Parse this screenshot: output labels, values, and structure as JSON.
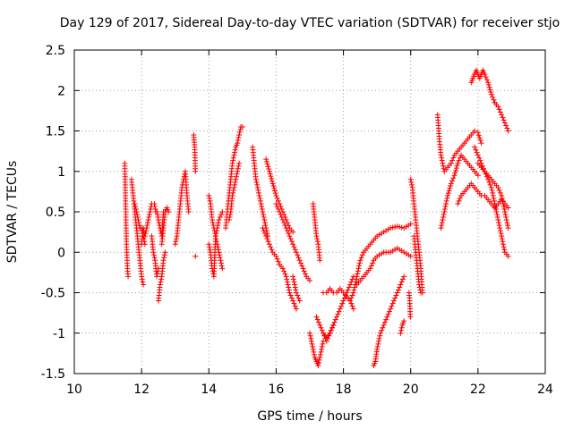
{
  "chart_data": {
    "type": "scatter",
    "title": "Day 129 of 2017, Sidereal Day-to-day VTEC variation (SDTVAR) for receiver stjo",
    "xlabel": "GPS time / hours",
    "ylabel": "SDTVAR / TECUs",
    "xlim": [
      10,
      24
    ],
    "ylim": [
      -1.5,
      2.5
    ],
    "xticks": [
      10,
      12,
      14,
      16,
      18,
      20,
      22,
      24
    ],
    "xtick_labels": [
      "10",
      "12",
      "14",
      "16",
      "18",
      "20",
      "22",
      "24"
    ],
    "yticks": [
      -1.5,
      -1,
      -0.5,
      0,
      0.5,
      1,
      1.5,
      2,
      2.5
    ],
    "ytick_labels": [
      "-1.5",
      "-1",
      "-0.5",
      "0",
      "0.5",
      "1",
      "1.5",
      "2",
      "2.5"
    ],
    "grid": true,
    "marker": "plus",
    "color": "#ff0000",
    "series": [
      {
        "name": "t11.5",
        "x": [
          11.5,
          11.52,
          11.54,
          11.56,
          11.58,
          11.6
        ],
        "y": [
          1.1,
          0.7,
          0.3,
          0.0,
          -0.2,
          -0.3
        ]
      },
      {
        "name": "t11.7",
        "x": [
          11.7,
          11.75,
          11.8,
          11.85,
          11.9,
          11.95,
          12.0,
          12.05
        ],
        "y": [
          0.9,
          0.7,
          0.5,
          0.3,
          0.1,
          -0.1,
          -0.3,
          -0.4
        ]
      },
      {
        "name": "t11.8",
        "x": [
          11.8,
          11.85,
          11.9,
          11.95,
          12.0,
          12.05,
          12.1
        ],
        "y": [
          0.6,
          0.5,
          0.4,
          0.3,
          0.3,
          0.2,
          0.1
        ]
      },
      {
        "name": "t12.0",
        "x": [
          12.0,
          12.05,
          12.1,
          12.15,
          12.2,
          12.25,
          12.3
        ],
        "y": [
          0.1,
          0.3,
          0.2,
          0.3,
          0.4,
          0.5,
          0.6
        ]
      },
      {
        "name": "t12.3",
        "x": [
          12.3,
          12.35,
          12.4,
          12.45,
          12.5
        ],
        "y": [
          0.2,
          0.0,
          -0.1,
          -0.3,
          -0.2
        ]
      },
      {
        "name": "t12.4",
        "x": [
          12.38,
          12.42,
          12.46,
          12.5,
          12.55,
          12.6,
          12.65
        ],
        "y": [
          0.6,
          0.5,
          0.5,
          0.4,
          0.3,
          0.2,
          0.5
        ]
      },
      {
        "name": "t12.5",
        "x": [
          12.5,
          12.55,
          12.6,
          12.65,
          12.7
        ],
        "y": [
          -0.6,
          -0.4,
          -0.3,
          -0.1,
          0.0
        ]
      },
      {
        "name": "t12.6",
        "x": [
          12.6,
          12.65,
          12.7,
          12.75,
          12.8
        ],
        "y": [
          0.1,
          0.3,
          0.5,
          0.55,
          0.5
        ]
      },
      {
        "name": "t13.0",
        "x": [
          13.0,
          13.05,
          13.1,
          13.15,
          13.2,
          13.25,
          13.3,
          13.35,
          13.4
        ],
        "y": [
          0.1,
          0.2,
          0.4,
          0.6,
          0.8,
          0.9,
          1.0,
          0.7,
          0.5
        ]
      },
      {
        "name": "t13.6",
        "x": [
          13.55,
          13.58,
          13.6
        ],
        "y": [
          1.45,
          1.3,
          1.0
        ]
      },
      {
        "name": "t13.6b",
        "x": [
          13.6
        ],
        "y": [
          -0.05
        ]
      },
      {
        "name": "t14.0",
        "x": [
          14.0,
          14.05,
          14.1,
          14.15,
          14.2,
          14.25,
          14.3,
          14.35,
          14.4
        ],
        "y": [
          0.7,
          0.6,
          0.4,
          0.3,
          0.2,
          0.1,
          0.0,
          -0.1,
          -0.2
        ]
      },
      {
        "name": "t14.0b",
        "x": [
          14.0,
          14.05,
          14.1,
          14.15,
          14.2,
          14.3,
          14.4
        ],
        "y": [
          0.1,
          0.0,
          -0.2,
          -0.3,
          0.2,
          0.4,
          0.5
        ]
      },
      {
        "name": "t14.5",
        "x": [
          14.5,
          14.55,
          14.6,
          14.65,
          14.7,
          14.75,
          14.8,
          14.85,
          14.9,
          14.95,
          15.0
        ],
        "y": [
          0.3,
          0.5,
          0.7,
          0.9,
          1.1,
          1.2,
          1.3,
          1.35,
          1.45,
          1.55,
          1.55
        ]
      },
      {
        "name": "t14.6",
        "x": [
          14.6,
          14.65,
          14.7,
          14.75,
          14.8,
          14.85,
          14.9
        ],
        "y": [
          0.4,
          0.5,
          0.7,
          0.8,
          0.9,
          1.0,
          1.1
        ]
      },
      {
        "name": "t15.3",
        "x": [
          15.3,
          15.35,
          15.4,
          15.45,
          15.5,
          15.55,
          15.6,
          15.65,
          15.7,
          15.75
        ],
        "y": [
          1.3,
          1.1,
          0.9,
          0.8,
          0.7,
          0.6,
          0.5,
          0.4,
          0.3,
          0.2
        ]
      },
      {
        "name": "t15.7",
        "x": [
          15.7,
          15.8,
          15.9,
          16.0,
          16.1,
          16.2,
          16.3,
          16.4,
          16.5
        ],
        "y": [
          1.15,
          1.0,
          0.85,
          0.7,
          0.6,
          0.5,
          0.4,
          0.3,
          0.25
        ]
      },
      {
        "name": "t16.0",
        "x": [
          16.0,
          16.1,
          16.2,
          16.3,
          16.4,
          16.5,
          16.6,
          16.7,
          16.8,
          16.9,
          17.0
        ],
        "y": [
          0.6,
          0.5,
          0.4,
          0.3,
          0.2,
          0.1,
          0.0,
          -0.1,
          -0.2,
          -0.3,
          -0.35
        ]
      },
      {
        "name": "t15.6",
        "x": [
          15.6,
          15.7,
          15.8,
          15.9,
          16.0,
          16.1,
          16.2,
          16.3,
          16.4,
          16.5,
          16.6
        ],
        "y": [
          0.3,
          0.2,
          0.1,
          0.0,
          -0.05,
          -0.15,
          -0.2,
          -0.3,
          -0.5,
          -0.6,
          -0.7
        ]
      },
      {
        "name": "t16.5",
        "x": [
          16.5,
          16.6,
          16.7
        ],
        "y": [
          -0.3,
          -0.5,
          -0.6
        ]
      },
      {
        "name": "t17.0",
        "x": [
          17.0,
          17.05,
          17.1,
          17.15,
          17.2,
          17.25,
          17.3,
          17.35,
          17.4
        ],
        "y": [
          -1.0,
          -1.1,
          -1.2,
          -1.3,
          -1.35,
          -1.4,
          -1.3,
          -1.2,
          -1.1
        ]
      },
      {
        "name": "t17.1",
        "x": [
          17.1,
          17.15,
          17.2,
          17.25,
          17.3
        ],
        "y": [
          0.6,
          0.4,
          0.2,
          0.1,
          -0.1
        ]
      },
      {
        "name": "t17.2",
        "x": [
          17.2,
          17.3,
          17.4,
          17.5,
          17.6,
          17.7
        ],
        "y": [
          -0.8,
          -0.9,
          -1.0,
          -1.05,
          -1.0,
          -0.9
        ]
      },
      {
        "name": "t17.4",
        "x": [
          17.4,
          17.5,
          17.6,
          17.7,
          17.8,
          17.9,
          18.0,
          18.1,
          18.2,
          18.3
        ],
        "y": [
          -1.0,
          -1.1,
          -1.0,
          -0.9,
          -0.8,
          -0.7,
          -0.6,
          -0.5,
          -0.4,
          -0.3
        ]
      },
      {
        "name": "t17.4b",
        "x": [
          17.4,
          17.5,
          17.6,
          17.7,
          17.8,
          17.9,
          18.0,
          18.1,
          18.2,
          18.3
        ],
        "y": [
          -0.5,
          -0.5,
          -0.45,
          -0.5,
          -0.5,
          -0.45,
          -0.5,
          -0.55,
          -0.6,
          -0.7
        ]
      },
      {
        "name": "t18.2",
        "x": [
          18.2,
          18.3,
          18.4,
          18.5,
          18.6,
          18.7,
          18.8,
          18.9,
          19.0,
          19.2,
          19.4,
          19.6,
          19.8,
          20.0
        ],
        "y": [
          -0.6,
          -0.5,
          -0.3,
          -0.1,
          0.0,
          0.05,
          0.1,
          0.15,
          0.2,
          0.25,
          0.3,
          0.32,
          0.3,
          0.35
        ]
      },
      {
        "name": "t18.4",
        "x": [
          18.4,
          18.5,
          18.6,
          18.7,
          18.8,
          18.9,
          19.0,
          19.2,
          19.4,
          19.6,
          19.8,
          20.0
        ],
        "y": [
          -0.4,
          -0.35,
          -0.3,
          -0.25,
          -0.2,
          -0.1,
          -0.05,
          0.0,
          0.0,
          0.05,
          0.0,
          -0.05
        ]
      },
      {
        "name": "t18.9",
        "x": [
          18.9,
          18.95,
          19.0,
          19.1,
          19.2,
          19.3,
          19.4,
          19.5,
          19.6,
          19.7,
          19.8
        ],
        "y": [
          -1.4,
          -1.35,
          -1.2,
          -1.0,
          -0.9,
          -0.8,
          -0.7,
          -0.6,
          -0.5,
          -0.4,
          -0.3
        ]
      },
      {
        "name": "t19.7",
        "x": [
          19.7,
          19.75,
          19.8
        ],
        "y": [
          -1.0,
          -0.9,
          -0.85
        ]
      },
      {
        "name": "t20.0",
        "x": [
          20.0,
          20.05,
          20.1,
          20.15,
          20.2,
          20.25,
          20.3,
          20.35
        ],
        "y": [
          0.9,
          0.8,
          0.6,
          0.4,
          0.2,
          0.0,
          -0.2,
          -0.5
        ]
      },
      {
        "name": "t20.1",
        "x": [
          20.1,
          20.15,
          20.2,
          20.25,
          20.3
        ],
        "y": [
          0.2,
          0.0,
          -0.2,
          -0.4,
          -0.5
        ]
      },
      {
        "name": "t20.0b",
        "x": [
          19.95,
          19.97,
          19.99
        ],
        "y": [
          -0.5,
          -0.6,
          -0.8
        ]
      },
      {
        "name": "t20.8",
        "x": [
          20.8,
          20.82,
          20.85,
          20.9,
          20.95,
          21.0,
          21.1,
          21.2,
          21.3,
          21.4,
          21.5,
          21.6,
          21.7,
          21.8,
          21.9,
          22.0,
          22.1
        ],
        "y": [
          1.7,
          1.6,
          1.4,
          1.2,
          1.1,
          1.0,
          1.05,
          1.1,
          1.2,
          1.25,
          1.3,
          1.35,
          1.4,
          1.45,
          1.5,
          1.48,
          1.35
        ]
      },
      {
        "name": "t20.9",
        "x": [
          20.9,
          21.0,
          21.1,
          21.2,
          21.3,
          21.4,
          21.5,
          21.6,
          21.7,
          21.8,
          21.9,
          22.0
        ],
        "y": [
          0.3,
          0.5,
          0.7,
          0.85,
          0.95,
          1.1,
          1.2,
          1.15,
          1.1,
          1.05,
          1.0,
          0.95
        ]
      },
      {
        "name": "t21.4",
        "x": [
          21.4,
          21.5,
          21.6,
          21.7,
          21.8,
          21.9,
          22.0,
          22.1,
          22.2,
          22.3,
          22.4,
          22.5,
          22.6,
          22.7,
          22.8,
          22.9
        ],
        "y": [
          0.6,
          0.7,
          0.75,
          0.8,
          0.85,
          0.8,
          0.75,
          0.7,
          0.7,
          0.65,
          0.6,
          0.55,
          0.6,
          0.65,
          0.6,
          0.55
        ]
      },
      {
        "name": "t21.9",
        "x": [
          21.9,
          22.0,
          22.1,
          22.2,
          22.3,
          22.4,
          22.5,
          22.6,
          22.7,
          22.8,
          22.9
        ],
        "y": [
          1.3,
          1.2,
          1.1,
          1.0,
          0.9,
          0.8,
          0.6,
          0.4,
          0.2,
          0.0,
          -0.05
        ]
      },
      {
        "name": "t22.0",
        "x": [
          22.0,
          22.1,
          22.2,
          22.3,
          22.4,
          22.5,
          22.6,
          22.7,
          22.8,
          22.9
        ],
        "y": [
          1.1,
          1.05,
          1.0,
          0.95,
          0.9,
          0.85,
          0.8,
          0.7,
          0.5,
          0.3
        ]
      },
      {
        "name": "t21.8",
        "x": [
          21.8,
          21.85,
          21.9,
          21.95,
          22.0,
          22.05,
          22.1,
          22.15,
          22.2,
          22.3,
          22.4,
          22.5
        ],
        "y": [
          2.1,
          2.15,
          2.2,
          2.25,
          2.2,
          2.15,
          2.2,
          2.25,
          2.2,
          2.1,
          1.95,
          1.85
        ]
      },
      {
        "name": "t22.5",
        "x": [
          22.5,
          22.6,
          22.7,
          22.8,
          22.9
        ],
        "y": [
          1.85,
          1.8,
          1.7,
          1.6,
          1.5
        ]
      }
    ]
  }
}
